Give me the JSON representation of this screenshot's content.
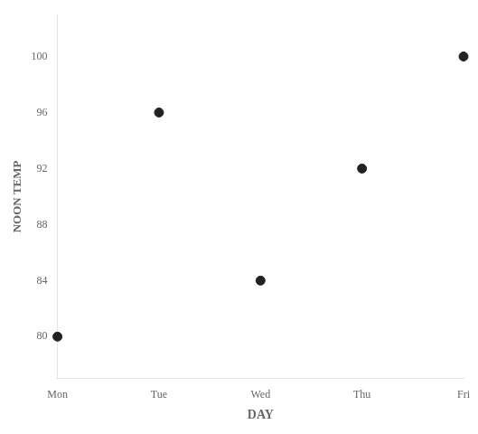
{
  "chart_data": {
    "type": "scatter",
    "categories": [
      "Mon",
      "Tue",
      "Wed",
      "Thu",
      "Fri"
    ],
    "values": [
      80,
      96,
      84,
      92,
      100
    ],
    "color": "#222222",
    "xlabel": "DAY",
    "ylabel": "NOON TEMP",
    "ylim": [
      77,
      103
    ],
    "yticks": [
      80,
      84,
      88,
      92,
      96,
      100
    ],
    "grid": false
  }
}
